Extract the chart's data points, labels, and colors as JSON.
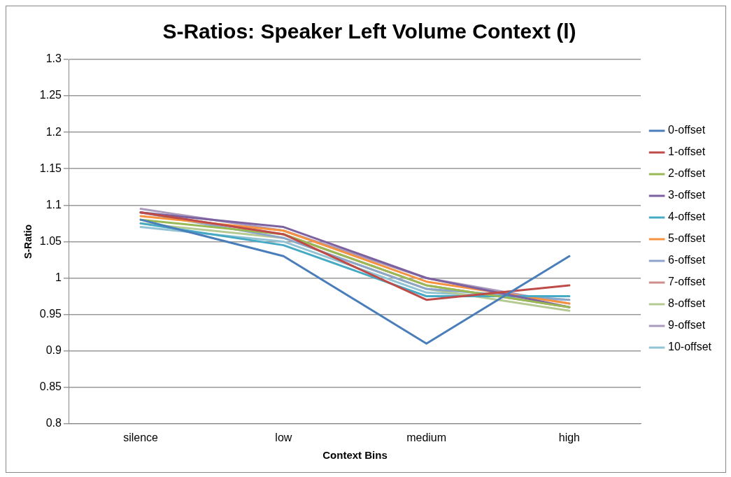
{
  "chart_data": {
    "type": "line",
    "title": "S-Ratios: Speaker Left Volume Context (l)",
    "xlabel": "Context Bins",
    "ylabel": "S-Ratio",
    "categories": [
      "silence",
      "low",
      "medium",
      "high"
    ],
    "ylim": [
      0.8,
      1.3
    ],
    "yticks": [
      0.8,
      0.85,
      0.9,
      0.95,
      1,
      1.05,
      1.1,
      1.15,
      1.2,
      1.25,
      1.3
    ],
    "grid": "y",
    "legend": "right",
    "marker": "none",
    "line_style": "solid",
    "series": [
      {
        "name": "0-offset",
        "color": "#4a7ebb",
        "values": [
          1.08,
          1.03,
          0.91,
          1.03
        ]
      },
      {
        "name": "1-offset",
        "color": "#be4b48",
        "values": [
          1.09,
          1.06,
          0.97,
          0.99
        ]
      },
      {
        "name": "2-offset",
        "color": "#98b954",
        "values": [
          1.08,
          1.06,
          0.99,
          0.96
        ]
      },
      {
        "name": "3-offset",
        "color": "#7d60a0",
        "values": [
          1.09,
          1.07,
          1.0,
          0.96
        ]
      },
      {
        "name": "4-offset",
        "color": "#46aac5",
        "values": [
          1.075,
          1.045,
          0.975,
          0.975
        ]
      },
      {
        "name": "5-offset",
        "color": "#f69240",
        "values": [
          1.085,
          1.065,
          0.995,
          0.965
        ]
      },
      {
        "name": "6-offset",
        "color": "#8ea5cb",
        "values": [
          1.09,
          1.055,
          0.985,
          0.97
        ]
      },
      {
        "name": "7-offset",
        "color": "#ce8e8d",
        "values": [
          1.09,
          1.06,
          0.99,
          0.96
        ]
      },
      {
        "name": "8-offset",
        "color": "#b5ca92",
        "values": [
          1.075,
          1.055,
          0.985,
          0.955
        ]
      },
      {
        "name": "9-offset",
        "color": "#a99bbd",
        "values": [
          1.095,
          1.065,
          1.0,
          0.965
        ]
      },
      {
        "name": "10-offset",
        "color": "#91c3d5",
        "values": [
          1.07,
          1.05,
          0.98,
          0.97
        ]
      }
    ]
  }
}
